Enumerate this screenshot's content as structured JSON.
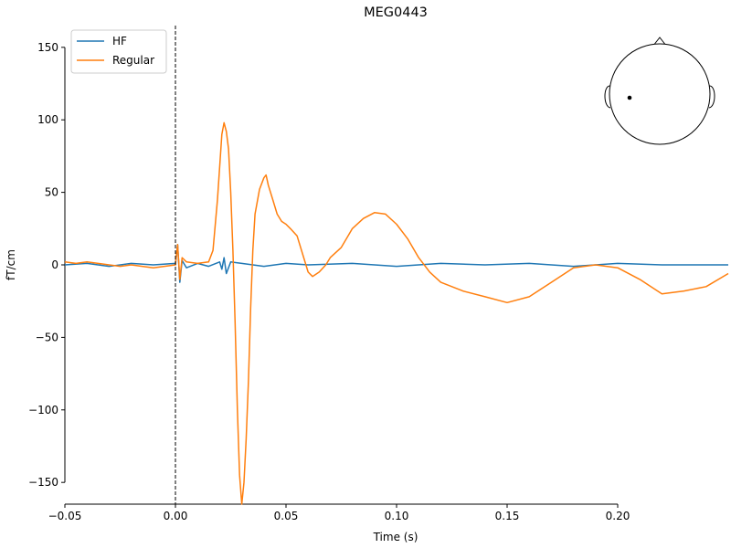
{
  "chart_data": {
    "type": "line",
    "title": "MEG0443",
    "xlabel": "Time (s)",
    "ylabel": "fT/cm",
    "xlim": [
      -0.05,
      0.25
    ],
    "ylim": [
      -165,
      165
    ],
    "x_ticks": [
      -0.05,
      0.0,
      0.05,
      0.1,
      0.15,
      0.2
    ],
    "x_tick_labels": [
      "−0.05",
      "0.00",
      "0.05",
      "0.10",
      "0.15",
      "0.20"
    ],
    "y_ticks": [
      -150,
      -100,
      -50,
      0,
      50,
      100,
      150
    ],
    "y_tick_labels": [
      "−150",
      "−100",
      "−50",
      "0",
      "50",
      "100",
      "150"
    ],
    "grid": false,
    "legend_position": "top-left",
    "vline": {
      "x": 0.0,
      "style": "dashed",
      "color": "#000000"
    },
    "inset": {
      "type": "head-sensor-map",
      "position": "top-right",
      "sensor_marker": "dot"
    },
    "series": [
      {
        "name": "HF",
        "color": "#1f77b4",
        "x": [
          -0.05,
          -0.04,
          -0.03,
          -0.02,
          -0.01,
          0.0,
          0.001,
          0.002,
          0.003,
          0.005,
          0.01,
          0.015,
          0.02,
          0.021,
          0.022,
          0.023,
          0.025,
          0.03,
          0.04,
          0.05,
          0.06,
          0.08,
          0.1,
          0.12,
          0.14,
          0.16,
          0.18,
          0.2,
          0.22,
          0.25
        ],
        "values": [
          0,
          1,
          -1,
          1,
          0,
          1,
          14,
          -12,
          3,
          -2,
          1,
          -1,
          2,
          -3,
          5,
          -6,
          2,
          1,
          -1,
          1,
          0,
          1,
          -1,
          1,
          0,
          1,
          -1,
          1,
          0,
          0
        ]
      },
      {
        "name": "Regular",
        "color": "#ff7f0e",
        "x": [
          -0.05,
          -0.045,
          -0.04,
          -0.035,
          -0.03,
          -0.025,
          -0.02,
          -0.015,
          -0.01,
          -0.005,
          0.0,
          0.001,
          0.002,
          0.003,
          0.005,
          0.01,
          0.015,
          0.017,
          0.019,
          0.021,
          0.022,
          0.023,
          0.024,
          0.025,
          0.026,
          0.027,
          0.028,
          0.029,
          0.03,
          0.031,
          0.032,
          0.033,
          0.034,
          0.035,
          0.036,
          0.038,
          0.04,
          0.041,
          0.042,
          0.044,
          0.046,
          0.048,
          0.05,
          0.052,
          0.055,
          0.058,
          0.06,
          0.062,
          0.065,
          0.068,
          0.07,
          0.075,
          0.08,
          0.085,
          0.09,
          0.095,
          0.1,
          0.105,
          0.11,
          0.115,
          0.12,
          0.13,
          0.14,
          0.15,
          0.16,
          0.17,
          0.18,
          0.19,
          0.2,
          0.21,
          0.22,
          0.23,
          0.24,
          0.25
        ],
        "values": [
          2,
          1,
          2,
          1,
          0,
          -1,
          0,
          -1,
          -2,
          -1,
          0,
          14,
          -10,
          5,
          2,
          1,
          2,
          10,
          45,
          90,
          98,
          92,
          80,
          50,
          10,
          -40,
          -100,
          -145,
          -165,
          -150,
          -120,
          -80,
          -30,
          10,
          35,
          52,
          60,
          62,
          55,
          45,
          35,
          30,
          28,
          25,
          20,
          5,
          -5,
          -8,
          -5,
          0,
          5,
          12,
          25,
          32,
          36,
          35,
          28,
          18,
          5,
          -5,
          -12,
          -18,
          -22,
          -26,
          -22,
          -12,
          -2,
          0,
          -2,
          -10,
          -20,
          -18,
          -15,
          -6
        ]
      }
    ]
  }
}
